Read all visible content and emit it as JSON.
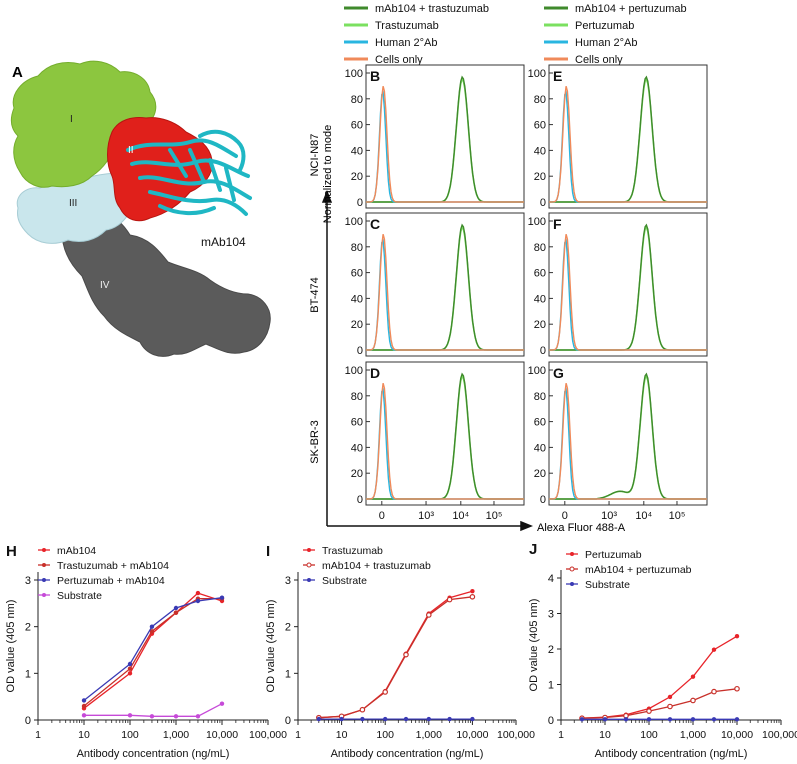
{
  "panelA": {
    "letter": "A",
    "domains": [
      "I",
      "II",
      "III",
      "IV"
    ],
    "antibody_label": "mAb104",
    "colors": {
      "I": "#8cc63f",
      "II": "#e0201b",
      "III": "#c9e6ec",
      "IV": "#5a5a5a",
      "antibody": "#1fb7c4"
    }
  },
  "flow": {
    "legend_left": [
      "mAb104 + trastuzumab",
      "Trastuzumab",
      "Human 2°Ab",
      "Cells only"
    ],
    "legend_right": [
      "mAb104 + pertuzumab",
      "Pertuzumab",
      "Human 2°Ab",
      "Cells only"
    ],
    "legend_colors": [
      "#3f8a2c",
      "#7be060",
      "#29b6e0",
      "#f08a5a"
    ],
    "row_labels": [
      "NCI-N87",
      "BT-474",
      "SK-BR-3"
    ],
    "y_axis_label": "Normalized to mode",
    "x_axis_label": "Alexa Fluor 488-A",
    "y_ticks": [
      "0",
      "20",
      "40",
      "60",
      "80",
      "100"
    ],
    "x_ticks": [
      "0",
      "10³",
      "10⁴",
      "10⁵"
    ],
    "panel_letters_left": [
      "B",
      "C",
      "D"
    ],
    "panel_letters_right": [
      "E",
      "F",
      "G"
    ]
  },
  "chart_data": [
    {
      "type": "line",
      "panel": "H",
      "xlabel": "Antibody concentration (ng/mL)",
      "ylabel": "OD value (405 nm)",
      "xscale": "log",
      "xlim": [
        1,
        100000
      ],
      "ylim": [
        0,
        3
      ],
      "xtick_labels": [
        "1",
        "10",
        "100",
        "1,000",
        "10,000",
        "100,000"
      ],
      "ytick_labels": [
        "0",
        "1",
        "2",
        "3"
      ],
      "x": [
        10,
        100,
        300,
        1000,
        3000,
        10000
      ],
      "series": [
        {
          "name": "mAb104",
          "color": "#e8242a",
          "marker": "dot",
          "values": [
            0.25,
            1.0,
            1.85,
            2.3,
            2.72,
            2.55
          ]
        },
        {
          "name": "Trastuzumab + mAb104",
          "color": "#c8302a",
          "marker": "dot",
          "values": [
            0.3,
            1.1,
            1.9,
            2.3,
            2.6,
            2.6
          ]
        },
        {
          "name": "Pertuzumab + mAb104",
          "color": "#3a3ab4",
          "marker": "dot",
          "values": [
            0.42,
            1.2,
            2.0,
            2.4,
            2.55,
            2.62
          ]
        },
        {
          "name": "Substrate",
          "color": "#c64ad8",
          "marker": "dot",
          "values": [
            0.1,
            0.1,
            0.08,
            0.08,
            0.08,
            0.35
          ]
        }
      ]
    },
    {
      "type": "line",
      "panel": "I",
      "xlabel": "Antibody concentration (ng/mL)",
      "ylabel": "OD value (405 nm)",
      "xscale": "log",
      "xlim": [
        1,
        100000
      ],
      "ylim": [
        0,
        3
      ],
      "xtick_labels": [
        "1",
        "10",
        "100",
        "1,000",
        "10,000",
        "100,000"
      ],
      "ytick_labels": [
        "0",
        "1",
        "2",
        "3"
      ],
      "x": [
        3,
        10,
        30,
        100,
        300,
        1000,
        3000,
        10000
      ],
      "series": [
        {
          "name": "Trastuzumab",
          "color": "#e8242a",
          "marker": "dot",
          "values": [
            0.05,
            0.08,
            0.22,
            0.62,
            1.42,
            2.28,
            2.62,
            2.76
          ]
        },
        {
          "name": "mAb104 + trastuzumab",
          "color": "#c8302a",
          "marker": "ring",
          "values": [
            0.05,
            0.08,
            0.22,
            0.6,
            1.4,
            2.25,
            2.58,
            2.64
          ]
        },
        {
          "name": "Substrate",
          "color": "#3a3ab4",
          "marker": "dot",
          "values": [
            0.02,
            0.02,
            0.02,
            0.02,
            0.02,
            0.02,
            0.02,
            0.02
          ]
        }
      ]
    },
    {
      "type": "line",
      "panel": "J",
      "xlabel": "Antibody concentration (ng/mL)",
      "ylabel": "OD value (405 nm)",
      "xscale": "log",
      "xlim": [
        1,
        100000
      ],
      "ylim": [
        0,
        4
      ],
      "xtick_labels": [
        "1",
        "10",
        "100",
        "1,000",
        "10,000",
        "100,000"
      ],
      "ytick_labels": [
        "0",
        "1",
        "2",
        "3",
        "4"
      ],
      "x": [
        3,
        10,
        30,
        100,
        300,
        1000,
        3000,
        10000
      ],
      "series": [
        {
          "name": "Pertuzumab",
          "color": "#e8242a",
          "marker": "dot",
          "values": [
            0.05,
            0.08,
            0.15,
            0.32,
            0.65,
            1.22,
            1.98,
            2.36
          ]
        },
        {
          "name": "mAb104 + pertuzumab",
          "color": "#c8302a",
          "marker": "ring",
          "values": [
            0.05,
            0.07,
            0.12,
            0.25,
            0.38,
            0.55,
            0.8,
            0.88
          ]
        },
        {
          "name": "Substrate",
          "color": "#3a3ab4",
          "marker": "dot",
          "values": [
            0.02,
            0.02,
            0.02,
            0.02,
            0.02,
            0.02,
            0.02,
            0.02
          ]
        }
      ]
    }
  ]
}
